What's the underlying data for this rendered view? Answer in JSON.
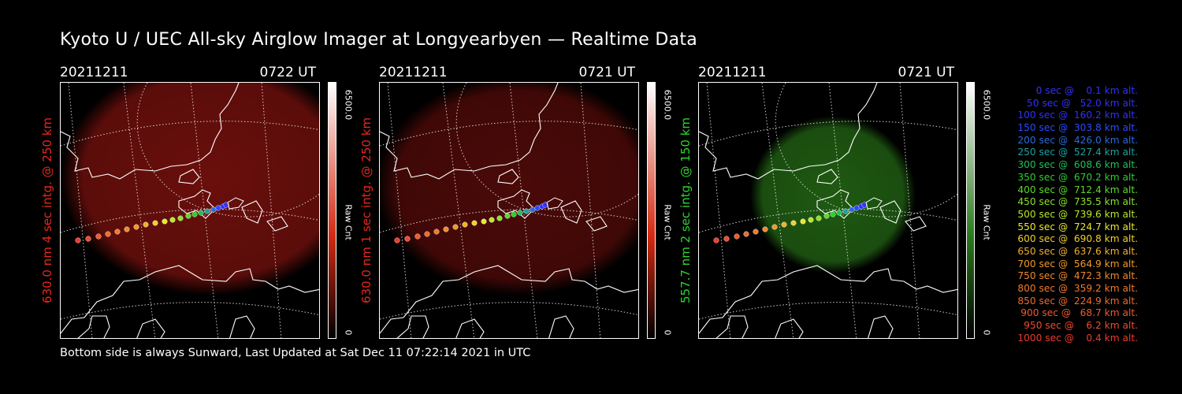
{
  "title": "Kyoto U / UEC All-sky Airglow Imager at Longyearbyen — Realtime Data",
  "footer": "Bottom side is always Sunward, Last Updated at Sat Dec 11 07:22:14 2021 in UTC",
  "panels": [
    {
      "date": "20211211",
      "time": "0722 UT",
      "side_label": "630.0 nm 4 sec intg. @ 250 km",
      "label_color": "#e8261c",
      "cbar_max": "6500.0",
      "cbar_unit": "Raw Cnt",
      "cbar_min": "0",
      "glow_color": "#6a0f0c",
      "cbar_color": "#d22a12"
    },
    {
      "date": "20211211",
      "time": "0721 UT",
      "side_label": "630.0 nm 1 sec intg. @ 250 km",
      "label_color": "#e8261c",
      "cbar_max": "6500.0",
      "cbar_unit": "Raw Cnt",
      "cbar_min": "0",
      "glow_color": "#4a0a08",
      "cbar_color": "#d22a12"
    },
    {
      "date": "20211211",
      "time": "0721 UT",
      "side_label": "557.7 nm 2 sec intg. @ 150 km",
      "label_color": "#2bd62b",
      "cbar_max": "6500.0",
      "cbar_unit": "Raw Cnt",
      "cbar_min": "0",
      "glow_color": "#1f5a12",
      "cbar_color": "#2a7a1c"
    }
  ],
  "legend": [
    {
      "text": "   0 sec @    0.1 km alt.",
      "color": "#3030ff"
    },
    {
      "text": "  50 sec @   52.0 km alt.",
      "color": "#3030ff"
    },
    {
      "text": " 100 sec @  160.2 km alt.",
      "color": "#3030ff"
    },
    {
      "text": " 150 sec @  303.8 km alt.",
      "color": "#2a4aff"
    },
    {
      "text": " 200 sec @  426.0 km alt.",
      "color": "#2a6adf"
    },
    {
      "text": " 250 sec @  527.4 km alt.",
      "color": "#1fa0a0"
    },
    {
      "text": " 300 sec @  608.6 km alt.",
      "color": "#1fc05a"
    },
    {
      "text": " 350 sec @  670.2 km alt.",
      "color": "#2ad02a"
    },
    {
      "text": " 400 sec @  712.4 km alt.",
      "color": "#5ad82a"
    },
    {
      "text": " 450 sec @  735.5 km alt.",
      "color": "#8ae02a"
    },
    {
      "text": " 500 sec @  739.6 km alt.",
      "color": "#b8e82a"
    },
    {
      "text": " 550 sec @  724.7 km alt.",
      "color": "#e8e82a"
    },
    {
      "text": " 600 sec @  690.8 km alt.",
      "color": "#f0d02a"
    },
    {
      "text": " 650 sec @  637.6 km alt.",
      "color": "#f0b02a"
    },
    {
      "text": " 700 sec @  564.9 km alt.",
      "color": "#f0982a"
    },
    {
      "text": " 750 sec @  472.3 km alt.",
      "color": "#f08a2a"
    },
    {
      "text": " 800 sec @  359.2 km alt.",
      "color": "#f07a2a"
    },
    {
      "text": " 850 sec @  224.9 km alt.",
      "color": "#f06a2a"
    },
    {
      "text": " 900 sec @   68.7 km alt.",
      "color": "#f05a2a"
    },
    {
      "text": " 950 sec @    6.2 km alt.",
      "color": "#f04a2a"
    },
    {
      "text": "1000 sec @    0.4 km alt.",
      "color": "#f03a2a"
    }
  ]
}
